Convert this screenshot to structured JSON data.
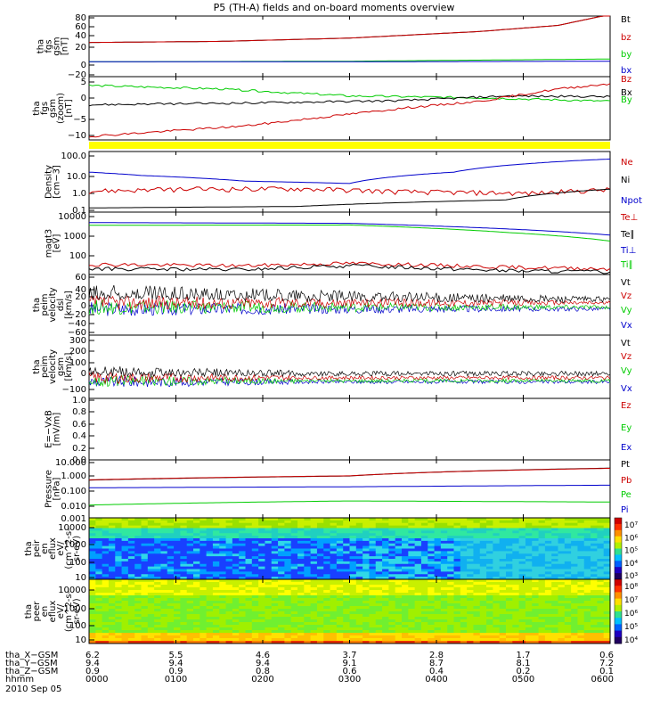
{
  "title": "P5 (TH-A) fields and on-board moments overview",
  "chart_data": {
    "type": "line",
    "title": "P5 (TH-A) fields and on-board moments overview",
    "panels": [
      {
        "id": "p1",
        "ylabel": [
          "tha",
          "fgs",
          "gsm",
          "[nT]"
        ],
        "yticks": [
          "80",
          "60",
          "40",
          "20",
          "0",
          "−20"
        ],
        "legend": [
          {
            "name": "Bt",
            "color": "#000000"
          },
          {
            "name": "bz",
            "color": "#cc0000"
          },
          {
            "name": "by",
            "color": "#00cc00"
          },
          {
            "name": "bx",
            "color": "#0000cc"
          }
        ],
        "series": [
          {
            "name": "Bt",
            "color": "#000000",
            "points": [
              [
                0,
                32
              ],
              [
                0.25,
                34
              ],
              [
                0.5,
                40
              ],
              [
                0.75,
                52
              ],
              [
                0.9,
                63
              ],
              [
                1,
                83
              ]
            ]
          },
          {
            "name": "bz",
            "color": "#cc0000",
            "points": [
              [
                0,
                32
              ],
              [
                0.25,
                34
              ],
              [
                0.5,
                40
              ],
              [
                0.75,
                52
              ],
              [
                0.9,
                63
              ],
              [
                1,
                83
              ]
            ]
          },
          {
            "name": "by",
            "color": "#00cc00",
            "points": [
              [
                0,
                -3
              ],
              [
                0.5,
                -2
              ],
              [
                1,
                2
              ]
            ]
          },
          {
            "name": "bx",
            "color": "#0000cc",
            "points": [
              [
                0,
                -3
              ],
              [
                0.5,
                -3
              ],
              [
                1,
                -2
              ]
            ]
          }
        ]
      },
      {
        "id": "p2",
        "ylabel": [
          "tha",
          "fgs",
          "gsm",
          "(zoom)",
          "[nT]"
        ],
        "yticks": [
          "5",
          "0",
          "−5",
          "−10"
        ],
        "legend": [
          {
            "name": "Bz",
            "color": "#cc0000"
          },
          {
            "name": "Bx",
            "color": "#000000"
          },
          {
            "name": "By",
            "color": "#00cc00"
          }
        ],
        "series": [
          {
            "name": "By",
            "color": "#00cc00",
            "points": [
              [
                0,
                3.5
              ],
              [
                0.25,
                2.5
              ],
              [
                0.5,
                0.5
              ],
              [
                0.75,
                0
              ],
              [
                1,
                -1
              ]
            ]
          },
          {
            "name": "Bx",
            "color": "#000000",
            "points": [
              [
                0,
                -2
              ],
              [
                0.3,
                -1.5
              ],
              [
                0.6,
                -0.8
              ],
              [
                0.8,
                0.5
              ],
              [
                1,
                0.3
              ]
            ]
          },
          {
            "name": "Bz",
            "color": "#cc0000",
            "points": [
              [
                0,
                -11
              ],
              [
                0.3,
                -8
              ],
              [
                0.6,
                -3
              ],
              [
                0.75,
                -1
              ],
              [
                0.9,
                2.5
              ],
              [
                1,
                4
              ]
            ]
          }
        ]
      },
      {
        "id": "p3",
        "ylabel": [
          "Density",
          "[cm−3]"
        ],
        "yticks": [
          "100.0",
          "10.0",
          "1.0",
          "0.1"
        ],
        "legend": [
          {
            "name": "Ne",
            "color": "#cc0000"
          },
          {
            "name": "Ni",
            "color": "#000000"
          },
          {
            "name": "Npot",
            "color": "#0000cc"
          }
        ],
        "series": [
          {
            "name": "Npot",
            "color": "#0000cc",
            "points": [
              [
                0,
                12
              ],
              [
                0.1,
                8
              ],
              [
                0.3,
                4
              ],
              [
                0.5,
                3
              ],
              [
                0.7,
                12
              ],
              [
                0.85,
                35
              ],
              [
                1,
                60
              ]
            ]
          },
          {
            "name": "Ne",
            "color": "#cc0000",
            "points": [
              [
                0,
                1.2
              ],
              [
                0.2,
                1.5
              ],
              [
                0.4,
                1.6
              ],
              [
                0.6,
                1.1
              ],
              [
                0.85,
                0.9
              ],
              [
                1,
                1.4
              ]
            ]
          },
          {
            "name": "Ni",
            "color": "#000000",
            "points": [
              [
                0,
                0.15
              ],
              [
                0.4,
                0.18
              ],
              [
                0.8,
                0.4
              ],
              [
                1,
                1.5
              ]
            ]
          }
        ]
      },
      {
        "id": "p4",
        "ylabel": [
          "magt3",
          "[eV]"
        ],
        "yticks": [
          "10000",
          "1000",
          "100"
        ],
        "legend": [
          {
            "name": "Te⊥",
            "color": "#cc0000"
          },
          {
            "name": "Te∥",
            "color": "#000000"
          },
          {
            "name": "Ti⊥",
            "color": "#0000cc"
          },
          {
            "name": "Ti∥",
            "color": "#00cc00"
          }
        ],
        "series": [
          {
            "name": "Ti⊥",
            "color": "#0000cc",
            "points": [
              [
                0,
                4500
              ],
              [
                0.5,
                4200
              ],
              [
                0.8,
                2500
              ],
              [
                1,
                1400
              ]
            ]
          },
          {
            "name": "Ti∥",
            "color": "#00cc00",
            "points": [
              [
                0,
                3500
              ],
              [
                0.5,
                3600
              ],
              [
                0.8,
                1800
              ],
              [
                1,
                800
              ]
            ]
          },
          {
            "name": "Te⊥",
            "color": "#cc0000",
            "points": [
              [
                0,
                90
              ],
              [
                0.3,
                80
              ],
              [
                0.5,
                100
              ],
              [
                0.8,
                70
              ],
              [
                1,
                60
              ]
            ]
          },
          {
            "name": "Te∥",
            "color": "#000000",
            "points": [
              [
                0,
                60
              ],
              [
                0.3,
                55
              ],
              [
                0.5,
                80
              ],
              [
                0.8,
                50
              ],
              [
                1,
                45
              ]
            ]
          }
        ]
      },
      {
        "id": "p5",
        "ylabel": [
          "tha",
          "peim",
          "velocity",
          "dsl",
          "[km/s]"
        ],
        "yticks": [
          "60",
          "40",
          "20",
          "0",
          "−20",
          "−40",
          "−60"
        ],
        "legend": [
          {
            "name": "Vt",
            "color": "#000000"
          },
          {
            "name": "Vz",
            "color": "#cc0000"
          },
          {
            "name": "Vy",
            "color": "#00cc00"
          },
          {
            "name": "Vx",
            "color": "#0000cc"
          }
        ]
      },
      {
        "id": "p6",
        "ylabel": [
          "tha",
          "peim",
          "velocity",
          "gsm",
          "[km/s]"
        ],
        "yticks": [
          "300",
          "200",
          "100",
          "0",
          "−100"
        ],
        "legend": [
          {
            "name": "Vt",
            "color": "#000000"
          },
          {
            "name": "Vz",
            "color": "#cc0000"
          },
          {
            "name": "Vy",
            "color": "#00cc00"
          },
          {
            "name": "Vx",
            "color": "#0000cc"
          }
        ]
      },
      {
        "id": "p7",
        "ylabel": [
          "E=−VxB",
          "[mV/m]"
        ],
        "yticks": [
          "1.0",
          "0.8",
          "0.6",
          "0.4",
          "0.2",
          "0.0"
        ],
        "legend": [
          {
            "name": "Ez",
            "color": "#cc0000"
          },
          {
            "name": "Ey",
            "color": "#00cc00"
          },
          {
            "name": "Ex",
            "color": "#0000cc"
          }
        ]
      },
      {
        "id": "p8",
        "ylabel": [
          "Pressure",
          "[nPa]"
        ],
        "yticks": [
          "10.000",
          "1.000",
          "0.100",
          "0.010",
          "0.001"
        ],
        "legend": [
          {
            "name": "Pt",
            "color": "#000000"
          },
          {
            "name": "Pb",
            "color": "#cc0000"
          },
          {
            "name": "Pe",
            "color": "#00cc00"
          },
          {
            "name": "Pi",
            "color": "#0000cc"
          }
        ],
        "series": [
          {
            "name": "Pt",
            "color": "#000000",
            "points": [
              [
                0,
                0.4
              ],
              [
                0.5,
                0.8
              ],
              [
                1,
                3
              ]
            ]
          },
          {
            "name": "Pb",
            "color": "#cc0000",
            "points": [
              [
                0,
                0.42
              ],
              [
                0.5,
                0.82
              ],
              [
                1,
                2.9
              ]
            ]
          },
          {
            "name": "Pi",
            "color": "#0000cc",
            "points": [
              [
                0,
                0.11
              ],
              [
                0.5,
                0.13
              ],
              [
                1,
                0.17
              ]
            ]
          },
          {
            "name": "Pe",
            "color": "#00cc00",
            "points": [
              [
                0,
                0.006
              ],
              [
                0.5,
                0.012
              ],
              [
                1,
                0.01
              ]
            ]
          }
        ]
      },
      {
        "id": "p9",
        "ylabel": [
          "tha",
          "peir",
          "en",
          "eflux",
          "eV/",
          "(cm^2-s-",
          "sr-eV)"
        ],
        "yticks": [
          "10000",
          "1000",
          "100",
          "10"
        ],
        "cbar_ticks": [
          "10⁷",
          "10⁶",
          "10⁵",
          "10⁴",
          "10³"
        ]
      },
      {
        "id": "p10",
        "ylabel": [
          "tha",
          "peer",
          "en",
          "eflux",
          "eV/",
          "(cm^2-s-",
          "sr-eV)"
        ],
        "yticks": [
          "10000",
          "1000",
          "100",
          "10"
        ],
        "cbar_ticks": [
          "10⁸",
          "10⁷",
          "10⁶",
          "10⁵",
          "10⁴"
        ]
      }
    ],
    "xaxis": {
      "rows": [
        {
          "label": "tha_X−GSM",
          "values": [
            "6.2",
            "5.5",
            "4.6",
            "3.7",
            "2.8",
            "1.7",
            "0.6"
          ]
        },
        {
          "label": "tha_Y−GSM",
          "values": [
            "9.4",
            "9.4",
            "9.4",
            "9.1",
            "8.7",
            "8.1",
            "7.2"
          ]
        },
        {
          "label": "tha_Z−GSM",
          "values": [
            "0.9",
            "0.9",
            "0.8",
            "0.6",
            "0.4",
            "0.2",
            "0.1"
          ]
        },
        {
          "label": "hhmm",
          "values": [
            "0000",
            "0100",
            "0200",
            "0300",
            "0400",
            "0500",
            "0600"
          ]
        }
      ],
      "date": "2010 Sep 05"
    }
  }
}
